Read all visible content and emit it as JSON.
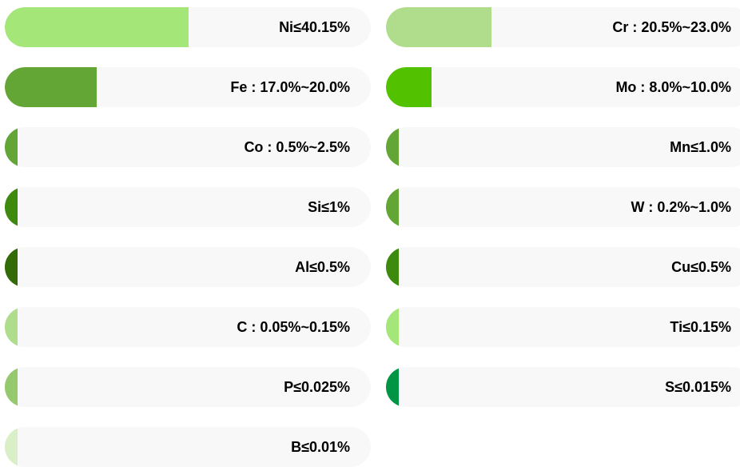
{
  "chart_data": {
    "type": "bar",
    "orientation": "horizontal",
    "layout": "two-column",
    "xlim": [
      0,
      100
    ],
    "items": [
      {
        "label": "Ni≤40.15%",
        "value": 40.15,
        "color": "#a5e678"
      },
      {
        "label": "Cr : 20.5%~23.0%",
        "value": 23.0,
        "color": "#b0dd8c"
      },
      {
        "label": "Fe : 17.0%~20.0%",
        "value": 20.0,
        "color": "#64a636"
      },
      {
        "label": "Mo : 8.0%~10.0%",
        "value": 10.0,
        "color": "#52c200"
      },
      {
        "label": "Co : 0.5%~2.5%",
        "value": 2.5,
        "color": "#64a636"
      },
      {
        "label": "Mn≤1.0%",
        "value": 1.0,
        "color": "#64a636"
      },
      {
        "label": "Si≤1%",
        "value": 1.0,
        "color": "#3d8a0f"
      },
      {
        "label": "W : 0.2%~1.0%",
        "value": 1.0,
        "color": "#64a636"
      },
      {
        "label": "Al≤0.5%",
        "value": 0.5,
        "color": "#336b08"
      },
      {
        "label": "Cu≤0.5%",
        "value": 0.5,
        "color": "#3d8a0f"
      },
      {
        "label": "C : 0.05%~0.15%",
        "value": 0.15,
        "color": "#b0dd8c"
      },
      {
        "label": "Ti≤0.15%",
        "value": 0.15,
        "color": "#a5e678"
      },
      {
        "label": "P≤0.025%",
        "value": 0.025,
        "color": "#96c86e"
      },
      {
        "label": "S≤0.015%",
        "value": 0.015,
        "color": "#009445"
      },
      {
        "label": "B≤0.01%",
        "value": 0.01,
        "color": "#d8efc8"
      }
    ]
  }
}
